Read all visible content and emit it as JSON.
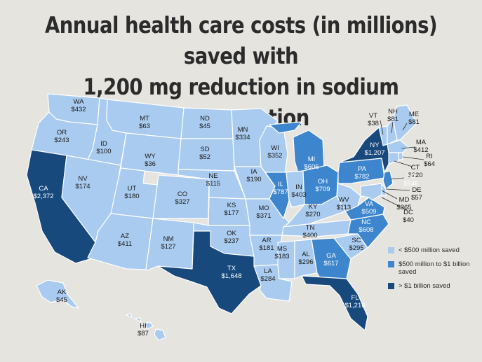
{
  "title_line1": "Annual health care costs (in millions) saved with",
  "title_line2": "1,200 mg reduction in sodium consumption",
  "colors": {
    "tier1": "#a9cbef",
    "tier2": "#3d86cd",
    "tier3": "#17497d",
    "border": "#ffffff",
    "background": "#e6e4df"
  },
  "legend": [
    {
      "label": "< $500 million saved",
      "color": "#a9cbef"
    },
    {
      "label": "$500 million to $1 billion saved",
      "color": "#3d86cd"
    },
    {
      "label": "> $1 billion saved",
      "color": "#17497d"
    }
  ],
  "states": [
    {
      "abbr": "WA",
      "value": "$432",
      "tier": 1
    },
    {
      "abbr": "OR",
      "value": "$243",
      "tier": 1
    },
    {
      "abbr": "CA",
      "value": "$2,372",
      "tier": 3
    },
    {
      "abbr": "ID",
      "value": "$100",
      "tier": 1
    },
    {
      "abbr": "NV",
      "value": "$174",
      "tier": 1
    },
    {
      "abbr": "MT",
      "value": "$63",
      "tier": 1
    },
    {
      "abbr": "WY",
      "value": "$36",
      "tier": 1
    },
    {
      "abbr": "UT",
      "value": "$180",
      "tier": 1
    },
    {
      "abbr": "AZ",
      "value": "$411",
      "tier": 1
    },
    {
      "abbr": "CO",
      "value": "$327",
      "tier": 1
    },
    {
      "abbr": "NM",
      "value": "$127",
      "tier": 1
    },
    {
      "abbr": "ND",
      "value": "$45",
      "tier": 1
    },
    {
      "abbr": "SD",
      "value": "$52",
      "tier": 1
    },
    {
      "abbr": "NE",
      "value": "$115",
      "tier": 1
    },
    {
      "abbr": "KS",
      "value": "$177",
      "tier": 1
    },
    {
      "abbr": "OK",
      "value": "$237",
      "tier": 1
    },
    {
      "abbr": "TX",
      "value": "$1,648",
      "tier": 3
    },
    {
      "abbr": "MN",
      "value": "$334",
      "tier": 1
    },
    {
      "abbr": "IA",
      "value": "$190",
      "tier": 1
    },
    {
      "abbr": "MO",
      "value": "$371",
      "tier": 1
    },
    {
      "abbr": "AR",
      "value": "$181",
      "tier": 1
    },
    {
      "abbr": "LA",
      "value": "$284",
      "tier": 1
    },
    {
      "abbr": "WI",
      "value": "$352",
      "tier": 1
    },
    {
      "abbr": "IL",
      "value": "$787",
      "tier": 2
    },
    {
      "abbr": "MI",
      "value": "$606",
      "tier": 2
    },
    {
      "abbr": "IN",
      "value": "$403",
      "tier": 1
    },
    {
      "abbr": "OH",
      "value": "$709",
      "tier": 2
    },
    {
      "abbr": "KY",
      "value": "$270",
      "tier": 1
    },
    {
      "abbr": "TN",
      "value": "$400",
      "tier": 1
    },
    {
      "abbr": "MS",
      "value": "$183",
      "tier": 1
    },
    {
      "abbr": "AL",
      "value": "$296",
      "tier": 1
    },
    {
      "abbr": "GA",
      "value": "$617",
      "tier": 2
    },
    {
      "abbr": "FL",
      "value": "$1,216",
      "tier": 3
    },
    {
      "abbr": "SC",
      "value": "$295",
      "tier": 1
    },
    {
      "abbr": "NC",
      "value": "$608",
      "tier": 2
    },
    {
      "abbr": "VA",
      "value": "$509",
      "tier": 2
    },
    {
      "abbr": "WV",
      "value": "$113",
      "tier": 1
    },
    {
      "abbr": "PA",
      "value": "$782",
      "tier": 2
    },
    {
      "abbr": "NY",
      "value": "$1,207",
      "tier": 3
    },
    {
      "abbr": "VT",
      "value": "$38",
      "tier": 1
    },
    {
      "abbr": "NH",
      "value": "$81",
      "tier": 1
    },
    {
      "abbr": "ME",
      "value": "$81",
      "tier": 1
    },
    {
      "abbr": "MA",
      "value": "$412",
      "tier": 1
    },
    {
      "abbr": "RI",
      "value": "$64",
      "tier": 1
    },
    {
      "abbr": "CT",
      "value": "$220",
      "tier": 1
    },
    {
      "abbr": "NJ",
      "value": "$546",
      "tier": 2
    },
    {
      "abbr": "DE",
      "value": "$57",
      "tier": 1
    },
    {
      "abbr": "MD",
      "value": "$365",
      "tier": 1
    },
    {
      "abbr": "DC",
      "value": "$40",
      "tier": 1
    },
    {
      "abbr": "AK",
      "value": "$45",
      "tier": 1
    },
    {
      "abbr": "HI",
      "value": "$87",
      "tier": 1
    }
  ]
}
